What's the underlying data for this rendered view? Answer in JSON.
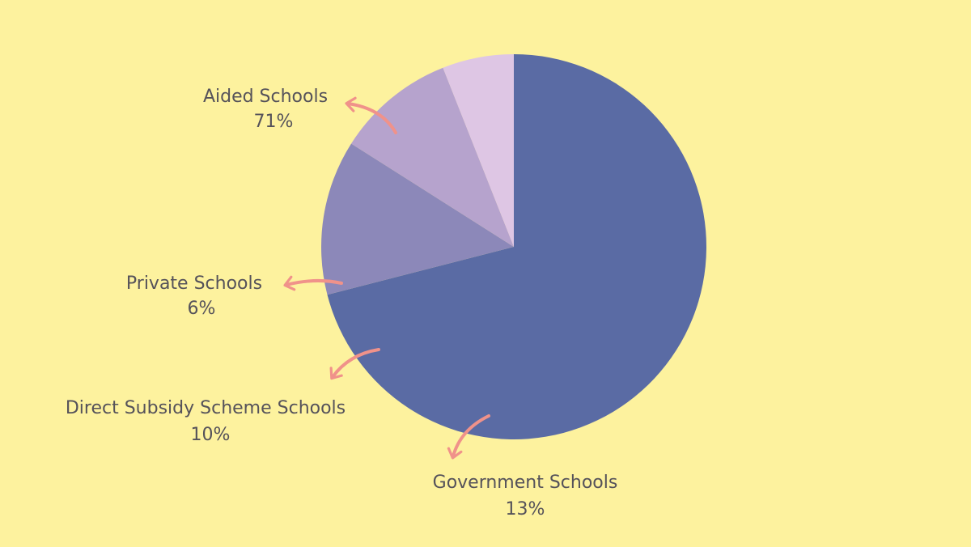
{
  "chart_data": {
    "type": "pie",
    "slices": [
      {
        "label": "Aided Schools",
        "value": 71,
        "value_label": "71%",
        "color": "#5a6ba4"
      },
      {
        "label": "Government Schools",
        "value": 13,
        "value_label": "13%",
        "color": "#8c88b9"
      },
      {
        "label": "Direct Subsidy Scheme Schools",
        "value": 10,
        "value_label": "10%",
        "color": "#b6a3cd"
      },
      {
        "label": "Private Schools",
        "value": 6,
        "value_label": "6%",
        "color": "#dec6e4"
      }
    ],
    "start_angle_deg": 270,
    "direction": "clockwise",
    "legend": "none",
    "background": "#fdf29e",
    "arrow_color": "#f0928a",
    "text_color": "#55525a"
  }
}
